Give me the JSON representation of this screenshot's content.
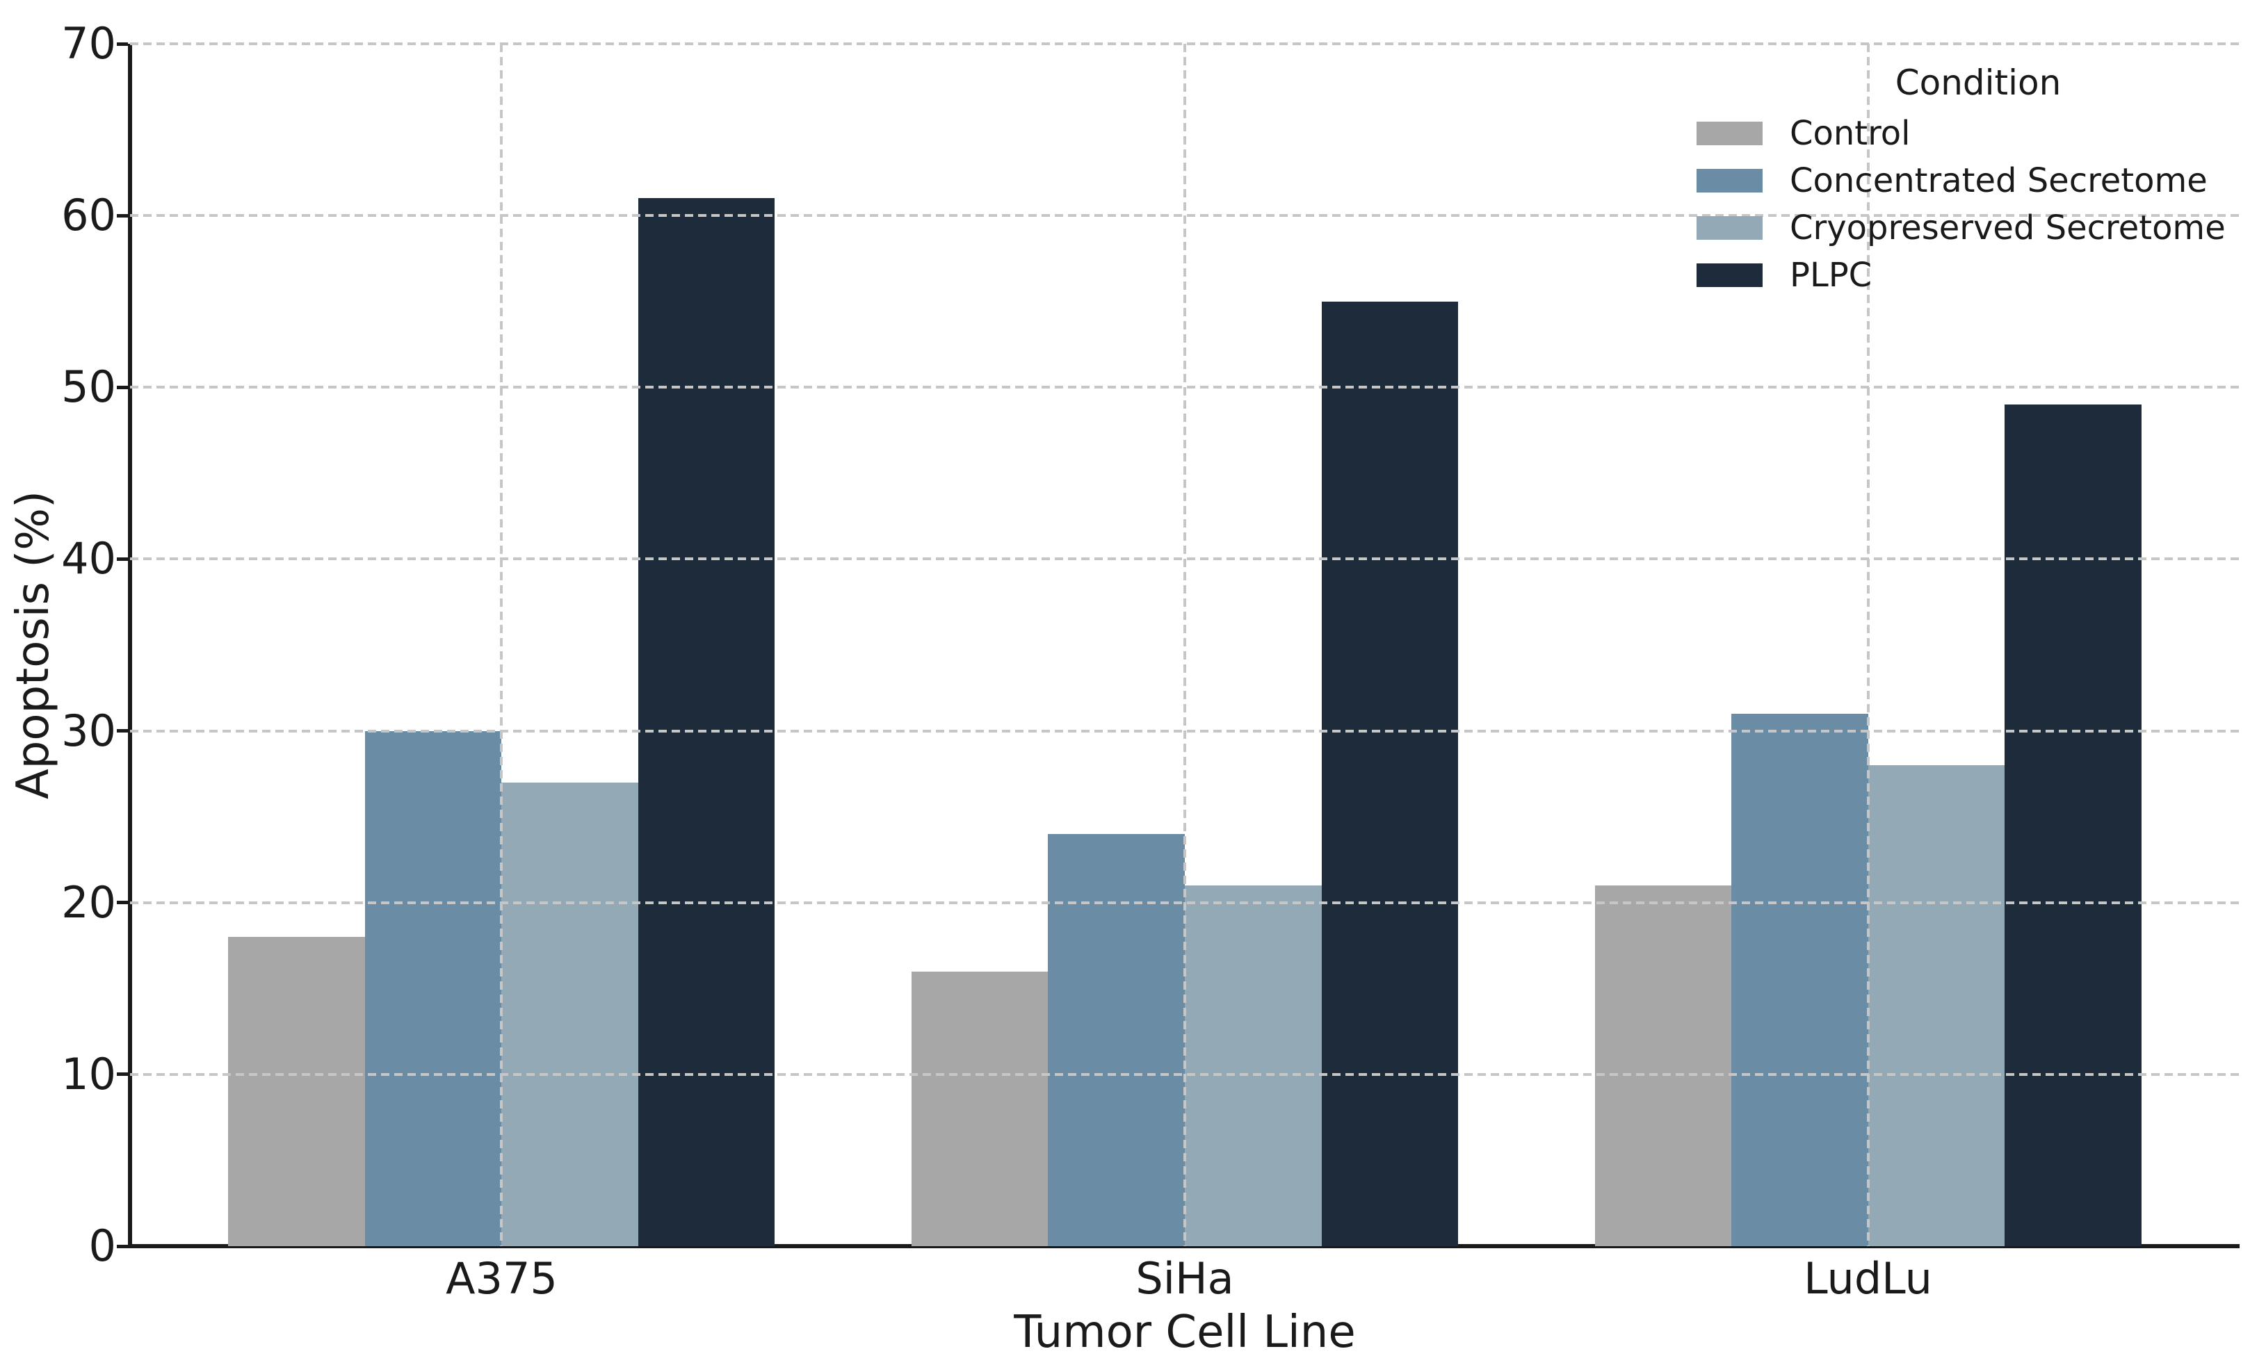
{
  "chart_data": {
    "type": "bar",
    "categories": [
      "A375",
      "SiHa",
      "LudLu"
    ],
    "series": [
      {
        "name": "Control",
        "color": "#a7a7a7",
        "values": [
          18,
          16,
          21
        ]
      },
      {
        "name": "Concentrated Secretome",
        "color": "#6a8ca5",
        "values": [
          30,
          24,
          31
        ]
      },
      {
        "name": "Cryopreserved Secretome",
        "color": "#93a9b6",
        "values": [
          27,
          21,
          28
        ]
      },
      {
        "name": "PLPC",
        "color": "#1d2b3a",
        "values": [
          61,
          55,
          49
        ]
      }
    ],
    "title": "",
    "xlabel": "Tumor Cell Line",
    "ylabel": "Apoptosis (%)",
    "ylim": [
      0,
      70
    ],
    "yticks": [
      0,
      10,
      20,
      30,
      40,
      50,
      60,
      70
    ],
    "grid": "dashed, both axes, drawn over bars",
    "legend": {
      "title": "Condition",
      "position": "upper right",
      "frame": false
    },
    "colors": {
      "gridline": "#c6c6c6",
      "spine": "#1a1a1a",
      "text": "#1a1a1a",
      "background": "#ffffff"
    }
  }
}
